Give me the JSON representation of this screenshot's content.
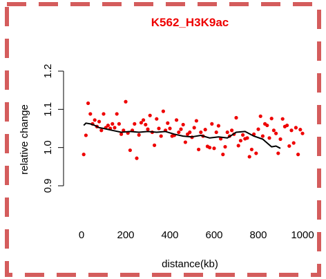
{
  "chart_data": {
    "type": "scatter",
    "title": "K562_H3K9ac",
    "xlabel": "distance(kb)",
    "ylabel": "relative change",
    "xlim": [
      0,
      1000
    ],
    "ylim": [
      0.88,
      1.22
    ],
    "x_ticks": [
      0,
      200,
      400,
      600,
      800,
      1000
    ],
    "y_ticks": [
      0.9,
      1.0,
      1.1,
      1.2
    ],
    "x_tick_labels": [
      "0",
      "200",
      "400",
      "600",
      "800",
      "1000"
    ],
    "y_tick_labels": [
      "0.9",
      "1.0",
      "1.1",
      "1.2"
    ],
    "grid": false,
    "legend": "none",
    "border": "dashed",
    "colors": {
      "points": "#ee0000",
      "title": "#ee0000",
      "trend": "#000000",
      "border": "#d45c5c"
    },
    "series": [
      {
        "type": "scatter",
        "x": [
          10,
          20,
          30,
          40,
          50,
          60,
          70,
          80,
          90,
          100,
          110,
          120,
          130,
          140,
          150,
          160,
          170,
          180,
          190,
          200,
          210,
          220,
          230,
          240,
          250,
          260,
          270,
          280,
          290,
          300,
          310,
          320,
          330,
          340,
          350,
          360,
          370,
          380,
          390,
          400,
          410,
          420,
          430,
          440,
          450,
          460,
          470,
          480,
          490,
          500,
          510,
          520,
          530,
          540,
          550,
          560,
          570,
          580,
          590,
          600,
          610,
          620,
          630,
          640,
          650,
          660,
          670,
          680,
          690,
          700,
          710,
          720,
          730,
          740,
          750,
          760,
          770,
          780,
          790,
          800,
          810,
          820,
          830,
          840,
          850,
          860,
          870,
          880,
          890,
          900,
          910,
          920,
          930,
          940,
          950,
          960,
          970,
          980,
          990,
          1000
        ],
        "y": [
          0.982,
          1.032,
          1.116,
          1.088,
          1.062,
          1.072,
          1.055,
          1.068,
          1.045,
          1.088,
          1.052,
          1.058,
          1.05,
          1.062,
          1.052,
          1.088,
          1.062,
          1.035,
          1.045,
          1.12,
          1.038,
          0.993,
          1.045,
          1.062,
          0.972,
          1.033,
          1.065,
          1.072,
          1.06,
          1.048,
          1.084,
          1.04,
          1.006,
          1.075,
          1.05,
          1.03,
          1.095,
          1.045,
          1.064,
          1.05,
          1.03,
          1.032,
          1.072,
          1.04,
          1.048,
          1.06,
          1.014,
          1.035,
          1.04,
          1.027,
          1.052,
          1.07,
          0.995,
          1.04,
          1.03,
          1.047,
          1.003,
          1.0,
          1.062,
          0.998,
          1.04,
          1.057,
          1.023,
          0.982,
          1.002,
          1.04,
          1.03,
          1.045,
          1.035,
          1.078,
          1.005,
          1.018,
          1.033,
          1.023,
          1.025,
          0.976,
          0.995,
          1.035,
          0.985,
          1.048,
          1.082,
          1.03,
          1.062,
          1.058,
          1.025,
          1.076,
          1.045,
          1.037,
          0.985,
          1.022,
          1.075,
          1.055,
          1.058,
          1.004,
          1.045,
          1.012,
          1.052,
          0.982,
          1.047,
          1.037
        ]
      },
      {
        "type": "line",
        "x": [
          10,
          20,
          40,
          60,
          80,
          100,
          140,
          180,
          220,
          260,
          300,
          340,
          380,
          420,
          460,
          500,
          540,
          580,
          620,
          660,
          700,
          740,
          780,
          820,
          860,
          880,
          900
        ],
        "y": [
          1.058,
          1.064,
          1.062,
          1.058,
          1.052,
          1.05,
          1.045,
          1.04,
          1.042,
          1.04,
          1.042,
          1.04,
          1.042,
          1.035,
          1.03,
          1.028,
          1.032,
          1.025,
          1.028,
          1.025,
          1.04,
          1.042,
          1.03,
          1.022,
          1.002,
          1.004,
          0.998
        ]
      }
    ]
  }
}
